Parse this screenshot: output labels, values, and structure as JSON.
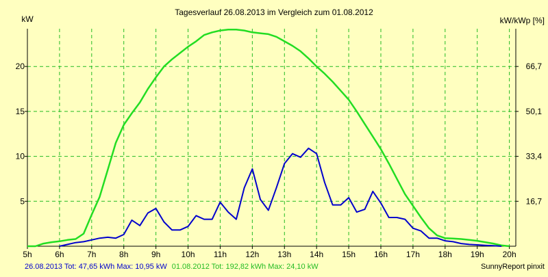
{
  "chart_data": {
    "type": "line",
    "title": "Tagesverlauf 26.08.2013 im Vergleich zum 01.08.2012",
    "y_left_unit": "kW",
    "y_right_unit": "kW/kWp [%]",
    "x_ticks": [
      "5h",
      "6h",
      "7h",
      "8h",
      "9h",
      "10h",
      "11h",
      "12h",
      "13h",
      "14h",
      "15h",
      "16h",
      "17h",
      "18h",
      "19h",
      "20h"
    ],
    "x_range": [
      5,
      20.2
    ],
    "y_ticks": [
      5,
      10,
      15,
      20
    ],
    "y_tick_labels": [
      "5",
      "10",
      "15",
      "20"
    ],
    "y_range": [
      0,
      24.2
    ],
    "y_right_ticks": [
      {
        "y": 5,
        "label": "16,7"
      },
      {
        "y": 10,
        "label": "33,4"
      },
      {
        "y": 15,
        "label": "50,1"
      },
      {
        "y": 20,
        "label": "66,7"
      }
    ],
    "grid": true,
    "colors": {
      "background": "#ffffc0",
      "grid": "#22bb22",
      "series_2013": "#0000cc",
      "series_2012": "#22dd22",
      "axis": "#000000"
    },
    "series": [
      {
        "name": "26.08.2013",
        "color": "#0000cc",
        "points": [
          [
            6.0,
            0.0
          ],
          [
            6.25,
            0.2
          ],
          [
            6.5,
            0.4
          ],
          [
            6.75,
            0.5
          ],
          [
            7.0,
            0.7
          ],
          [
            7.25,
            0.9
          ],
          [
            7.5,
            1.0
          ],
          [
            7.75,
            0.9
          ],
          [
            8.0,
            1.3
          ],
          [
            8.25,
            2.9
          ],
          [
            8.5,
            2.3
          ],
          [
            8.75,
            3.7
          ],
          [
            9.0,
            4.2
          ],
          [
            9.25,
            2.7
          ],
          [
            9.5,
            1.8
          ],
          [
            9.75,
            1.8
          ],
          [
            10.0,
            2.2
          ],
          [
            10.25,
            3.4
          ],
          [
            10.5,
            3.0
          ],
          [
            10.75,
            3.0
          ],
          [
            11.0,
            4.9
          ],
          [
            11.25,
            3.8
          ],
          [
            11.5,
            3.0
          ],
          [
            11.75,
            6.5
          ],
          [
            12.0,
            8.6
          ],
          [
            12.25,
            5.2
          ],
          [
            12.5,
            4.0
          ],
          [
            12.75,
            6.5
          ],
          [
            13.0,
            9.2
          ],
          [
            13.25,
            10.3
          ],
          [
            13.5,
            9.9
          ],
          [
            13.75,
            10.9
          ],
          [
            14.0,
            10.3
          ],
          [
            14.25,
            7.1
          ],
          [
            14.5,
            4.6
          ],
          [
            14.75,
            4.6
          ],
          [
            15.0,
            5.4
          ],
          [
            15.25,
            3.8
          ],
          [
            15.5,
            4.1
          ],
          [
            15.75,
            6.1
          ],
          [
            16.0,
            4.8
          ],
          [
            16.25,
            3.2
          ],
          [
            16.5,
            3.2
          ],
          [
            16.75,
            3.0
          ],
          [
            17.0,
            2.0
          ],
          [
            17.25,
            1.7
          ],
          [
            17.5,
            0.9
          ],
          [
            17.75,
            0.9
          ],
          [
            18.0,
            0.6
          ],
          [
            18.25,
            0.5
          ],
          [
            18.5,
            0.3
          ],
          [
            18.75,
            0.2
          ],
          [
            19.0,
            0.15
          ],
          [
            19.25,
            0.1
          ],
          [
            19.5,
            0.05
          ],
          [
            19.75,
            0.0
          ]
        ]
      },
      {
        "name": "01.08.2012",
        "color": "#22dd22",
        "points": [
          [
            5.0,
            0.0
          ],
          [
            5.25,
            0.0
          ],
          [
            5.5,
            0.3
          ],
          [
            5.75,
            0.45
          ],
          [
            6.0,
            0.55
          ],
          [
            6.25,
            0.7
          ],
          [
            6.5,
            0.8
          ],
          [
            6.75,
            1.4
          ],
          [
            7.0,
            3.5
          ],
          [
            7.25,
            5.5
          ],
          [
            7.5,
            8.5
          ],
          [
            7.75,
            11.5
          ],
          [
            8.0,
            13.5
          ],
          [
            8.25,
            14.8
          ],
          [
            8.5,
            16.0
          ],
          [
            8.75,
            17.5
          ],
          [
            9.0,
            18.8
          ],
          [
            9.25,
            20.0
          ],
          [
            9.5,
            20.8
          ],
          [
            9.75,
            21.5
          ],
          [
            10.0,
            22.2
          ],
          [
            10.25,
            22.8
          ],
          [
            10.5,
            23.5
          ],
          [
            10.75,
            23.8
          ],
          [
            11.0,
            24.0
          ],
          [
            11.25,
            24.1
          ],
          [
            11.5,
            24.1
          ],
          [
            11.75,
            24.0
          ],
          [
            12.0,
            23.8
          ],
          [
            12.25,
            23.7
          ],
          [
            12.5,
            23.6
          ],
          [
            12.75,
            23.3
          ],
          [
            13.0,
            22.8
          ],
          [
            13.25,
            22.3
          ],
          [
            13.5,
            21.7
          ],
          [
            13.75,
            20.9
          ],
          [
            14.0,
            20.0
          ],
          [
            14.25,
            19.2
          ],
          [
            14.5,
            18.3
          ],
          [
            14.75,
            17.3
          ],
          [
            15.0,
            16.3
          ],
          [
            15.25,
            15.0
          ],
          [
            15.5,
            13.6
          ],
          [
            15.75,
            12.2
          ],
          [
            16.0,
            10.8
          ],
          [
            16.25,
            9.2
          ],
          [
            16.5,
            7.5
          ],
          [
            16.75,
            5.8
          ],
          [
            17.0,
            4.5
          ],
          [
            17.25,
            3.2
          ],
          [
            17.5,
            2.0
          ],
          [
            17.75,
            1.2
          ],
          [
            18.0,
            0.9
          ],
          [
            18.25,
            0.85
          ],
          [
            18.5,
            0.8
          ],
          [
            18.75,
            0.7
          ],
          [
            19.0,
            0.6
          ],
          [
            19.25,
            0.45
          ],
          [
            19.5,
            0.3
          ],
          [
            19.75,
            0.1
          ],
          [
            20.0,
            0.0
          ]
        ]
      }
    ]
  },
  "footer": {
    "stats_2013": "26.08.2013 Tot: 47,65 kWh Max: 10,95 kW",
    "stats_2012": "01.08.2012 Tot: 192,82 kWh Max: 24,10 kW",
    "credit": "SunnyReport pinxit"
  }
}
